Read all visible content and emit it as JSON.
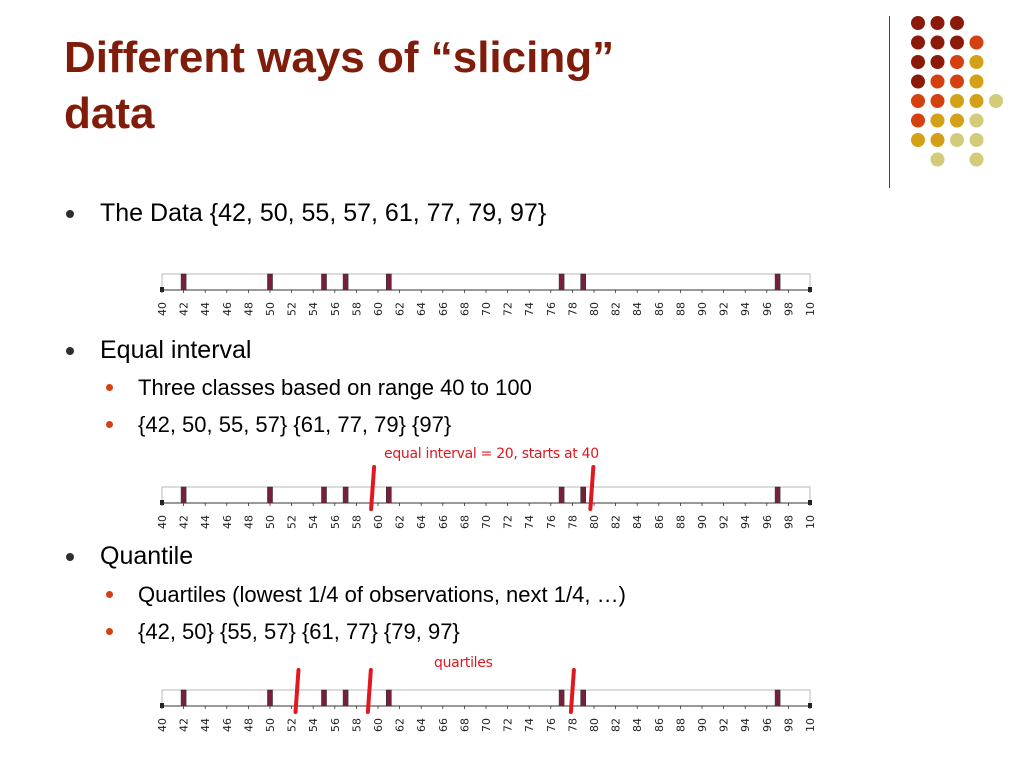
{
  "slide": {
    "title_line1": "Different ways of “slicing”",
    "title_line2": "data"
  },
  "colors": {
    "title": "#7f1d0a",
    "dot_dark_red": "#8b1a0a",
    "dot_orange": "#d4400f",
    "dot_gold": "#d4a017",
    "dot_pale": "#d2cc7a",
    "data_marker": "#7a1f3a",
    "break_line": "#e0181f"
  },
  "bullets": {
    "data": "The Data {42, 50, 55, 57, 61, 77, 79, 97}",
    "equal_interval": "Equal interval",
    "equal_sub1": "Three classes based on range 40 to 100",
    "equal_sub2": "{42, 50, 55, 57} {61, 77, 79} {97}",
    "quantile": "Quantile",
    "quantile_sub1": "Quartiles (lowest 1/4 of observations, next 1/4, …)",
    "quantile_sub2": "{42, 50} {55, 57} {61, 77} {79, 97}"
  },
  "annotations": {
    "equal_note": "equal interval = 20, starts at 40",
    "quartiles_note": "quartiles"
  },
  "chart_data": [
    {
      "type": "scatter",
      "title": "",
      "x": [
        42,
        50,
        55,
        57,
        61,
        77,
        79,
        97
      ],
      "xlim": [
        40,
        100
      ],
      "tick_labels": [
        "40",
        "42",
        "44",
        "46",
        "48",
        "50",
        "52",
        "54",
        "56",
        "58",
        "60",
        "62",
        "64",
        "66",
        "68",
        "70",
        "72",
        "74",
        "76",
        "78",
        "80",
        "82",
        "84",
        "86",
        "88",
        "90",
        "92",
        "94",
        "96",
        "98",
        "10"
      ],
      "breaks": []
    },
    {
      "type": "scatter",
      "title": "",
      "x": [
        42,
        50,
        55,
        57,
        61,
        77,
        79,
        97
      ],
      "xlim": [
        40,
        100
      ],
      "tick_labels": [
        "40",
        "42",
        "44",
        "46",
        "48",
        "50",
        "52",
        "54",
        "56",
        "58",
        "60",
        "62",
        "64",
        "66",
        "68",
        "70",
        "72",
        "74",
        "76",
        "78",
        "80",
        "82",
        "84",
        "86",
        "88",
        "90",
        "92",
        "94",
        "96",
        "98",
        "10"
      ],
      "breaks": [
        59.5,
        79.8
      ]
    },
    {
      "type": "scatter",
      "title": "",
      "x": [
        42,
        50,
        55,
        57,
        61,
        77,
        79,
        97
      ],
      "xlim": [
        40,
        100
      ],
      "tick_labels": [
        "40",
        "42",
        "44",
        "46",
        "48",
        "50",
        "52",
        "54",
        "56",
        "58",
        "60",
        "62",
        "64",
        "66",
        "68",
        "70",
        "72",
        "74",
        "76",
        "78",
        "80",
        "82",
        "84",
        "86",
        "88",
        "90",
        "92",
        "94",
        "96",
        "98",
        "10"
      ],
      "breaks": [
        52.5,
        59.2,
        78.0
      ]
    }
  ]
}
